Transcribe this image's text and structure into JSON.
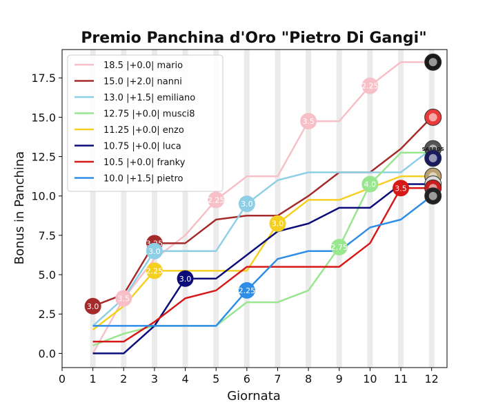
{
  "chart_data": {
    "type": "line",
    "title": "Premio Panchina d'Oro \"Pietro Di Gangi\"",
    "xlabel": "Giornata",
    "ylabel": "Bonus in Panchina",
    "xlim": [
      0,
      12.5
    ],
    "ylim": [
      -0.9,
      19.3
    ],
    "x_ticks": [
      0,
      1,
      2,
      3,
      4,
      5,
      6,
      7,
      8,
      9,
      10,
      11,
      12
    ],
    "y_ticks": [
      0.0,
      2.5,
      5.0,
      7.5,
      10.0,
      12.5,
      15.0,
      17.5
    ],
    "y_tick_labels": [
      "0.0",
      "2.5",
      "5.0",
      "7.5",
      "10.0",
      "12.5",
      "15.0",
      "17.5"
    ],
    "legend_position": "top-left",
    "x": [
      1,
      2,
      3,
      4,
      5,
      6,
      7,
      8,
      9,
      10,
      11,
      12
    ],
    "series": [
      {
        "name": "mario",
        "legend": "18.5   |+0.0|   mario",
        "color": "#f7c0c8",
        "values": [
          0.0,
          3.5,
          6.0,
          7.5,
          9.75,
          11.25,
          11.25,
          14.75,
          14.75,
          17.0,
          18.5,
          18.5
        ],
        "badges": [
          {
            "x": 2,
            "y": 3.5,
            "label": "3.5"
          },
          {
            "x": 5,
            "y": 9.75,
            "label": "2.25"
          },
          {
            "x": 8,
            "y": 14.75,
            "label": "3.5"
          },
          {
            "x": 10,
            "y": 17.0,
            "label": "2.25"
          }
        ]
      },
      {
        "name": "nanni",
        "legend": "15.0   |+2.0|   nanni",
        "color": "#a52a2a",
        "values": [
          3.0,
          3.75,
          7.0,
          7.0,
          8.5,
          8.75,
          8.75,
          10.0,
          11.5,
          11.5,
          13.0,
          15.0
        ],
        "badges": [
          {
            "x": 1,
            "y": 3.0,
            "label": "3.0"
          },
          {
            "x": 3,
            "y": 7.0,
            "label": "3.25"
          }
        ]
      },
      {
        "name": "emiliano",
        "legend": "13.0   |+1.5|   emiliano",
        "color": "#8ecfe6",
        "values": [
          1.75,
          3.5,
          6.5,
          6.5,
          6.5,
          9.5,
          11.0,
          11.5,
          11.5,
          11.5,
          11.5,
          13.0
        ],
        "badges": [
          {
            "x": 3,
            "y": 6.5,
            "label": "3.0"
          },
          {
            "x": 6,
            "y": 9.5,
            "label": "3.0"
          }
        ]
      },
      {
        "name": "musci8",
        "legend": "12.75   |+0.0|   musci8",
        "color": "#98e68e",
        "values": [
          0.5,
          1.25,
          1.75,
          1.75,
          1.75,
          3.25,
          3.25,
          4.0,
          6.75,
          10.75,
          12.75,
          12.75
        ],
        "badges": [
          {
            "x": 9,
            "y": 6.75,
            "label": "2.75"
          },
          {
            "x": 10,
            "y": 10.75,
            "label": "4.0"
          }
        ]
      },
      {
        "name": "enzo",
        "legend": "11.25   |+0.0|   enzo",
        "color": "#f5d020",
        "values": [
          1.5,
          3.0,
          5.25,
          5.25,
          5.25,
          5.25,
          8.25,
          9.75,
          9.75,
          10.5,
          11.25,
          11.25
        ],
        "badges": [
          {
            "x": 3,
            "y": 5.25,
            "label": "2.25"
          },
          {
            "x": 7,
            "y": 8.25,
            "label": "3.0"
          }
        ]
      },
      {
        "name": "luca",
        "legend": "10.75   |+0.0|   luca",
        "color": "#0b0b7a",
        "values": [
          0.0,
          0.0,
          1.75,
          4.75,
          4.75,
          6.25,
          7.75,
          8.25,
          9.25,
          9.25,
          10.75,
          10.75
        ],
        "badges": [
          {
            "x": 4,
            "y": 4.75,
            "label": "3.0"
          }
        ]
      },
      {
        "name": "franky",
        "legend": "10.5   |+0.0|   franky",
        "color": "#d61818",
        "values": [
          0.75,
          0.75,
          2.0,
          3.5,
          4.0,
          5.5,
          5.5,
          5.5,
          5.5,
          7.0,
          10.5,
          10.5
        ],
        "badges": [
          {
            "x": 11,
            "y": 10.5,
            "label": "3.5"
          }
        ]
      },
      {
        "name": "pietro",
        "legend": "10.0   |+1.5|   pietro",
        "color": "#2e8de6",
        "values": [
          1.75,
          1.75,
          1.75,
          1.75,
          1.75,
          4.0,
          6.0,
          6.5,
          6.5,
          8.0,
          8.5,
          10.0
        ],
        "badges": [
          {
            "x": 6,
            "y": 4.0,
            "label": "2.25"
          }
        ]
      }
    ],
    "end_logos": [
      {
        "series": "mario",
        "icon": "team-logo-icon",
        "y": 18.5,
        "color": "#1a1a1a"
      },
      {
        "series": "nanni",
        "icon": "red-mascot-logo-icon",
        "y": 15.0,
        "color": "#e83a3a"
      },
      {
        "series": "emiliano",
        "icon": "sabros-logo-icon",
        "y": 13.0,
        "color": "#555555",
        "text": "SABROS"
      },
      {
        "series": "musci8",
        "icon": "star-crest-logo-icon",
        "y": 12.4,
        "color": "#1a1a5e"
      },
      {
        "series": "enzo",
        "icon": "crest-logo-icon",
        "y": 11.25,
        "color": "#b8a070"
      },
      {
        "series": "luca",
        "icon": "white-circle-logo-icon",
        "y": 10.75,
        "color": "#dddddd"
      },
      {
        "series": "franky",
        "icon": "red-crest-logo-icon",
        "y": 10.5,
        "color": "#c81e1e"
      },
      {
        "series": "pietro",
        "icon": "inter-crest-logo-icon",
        "y": 10.0,
        "color": "#222222"
      }
    ]
  }
}
